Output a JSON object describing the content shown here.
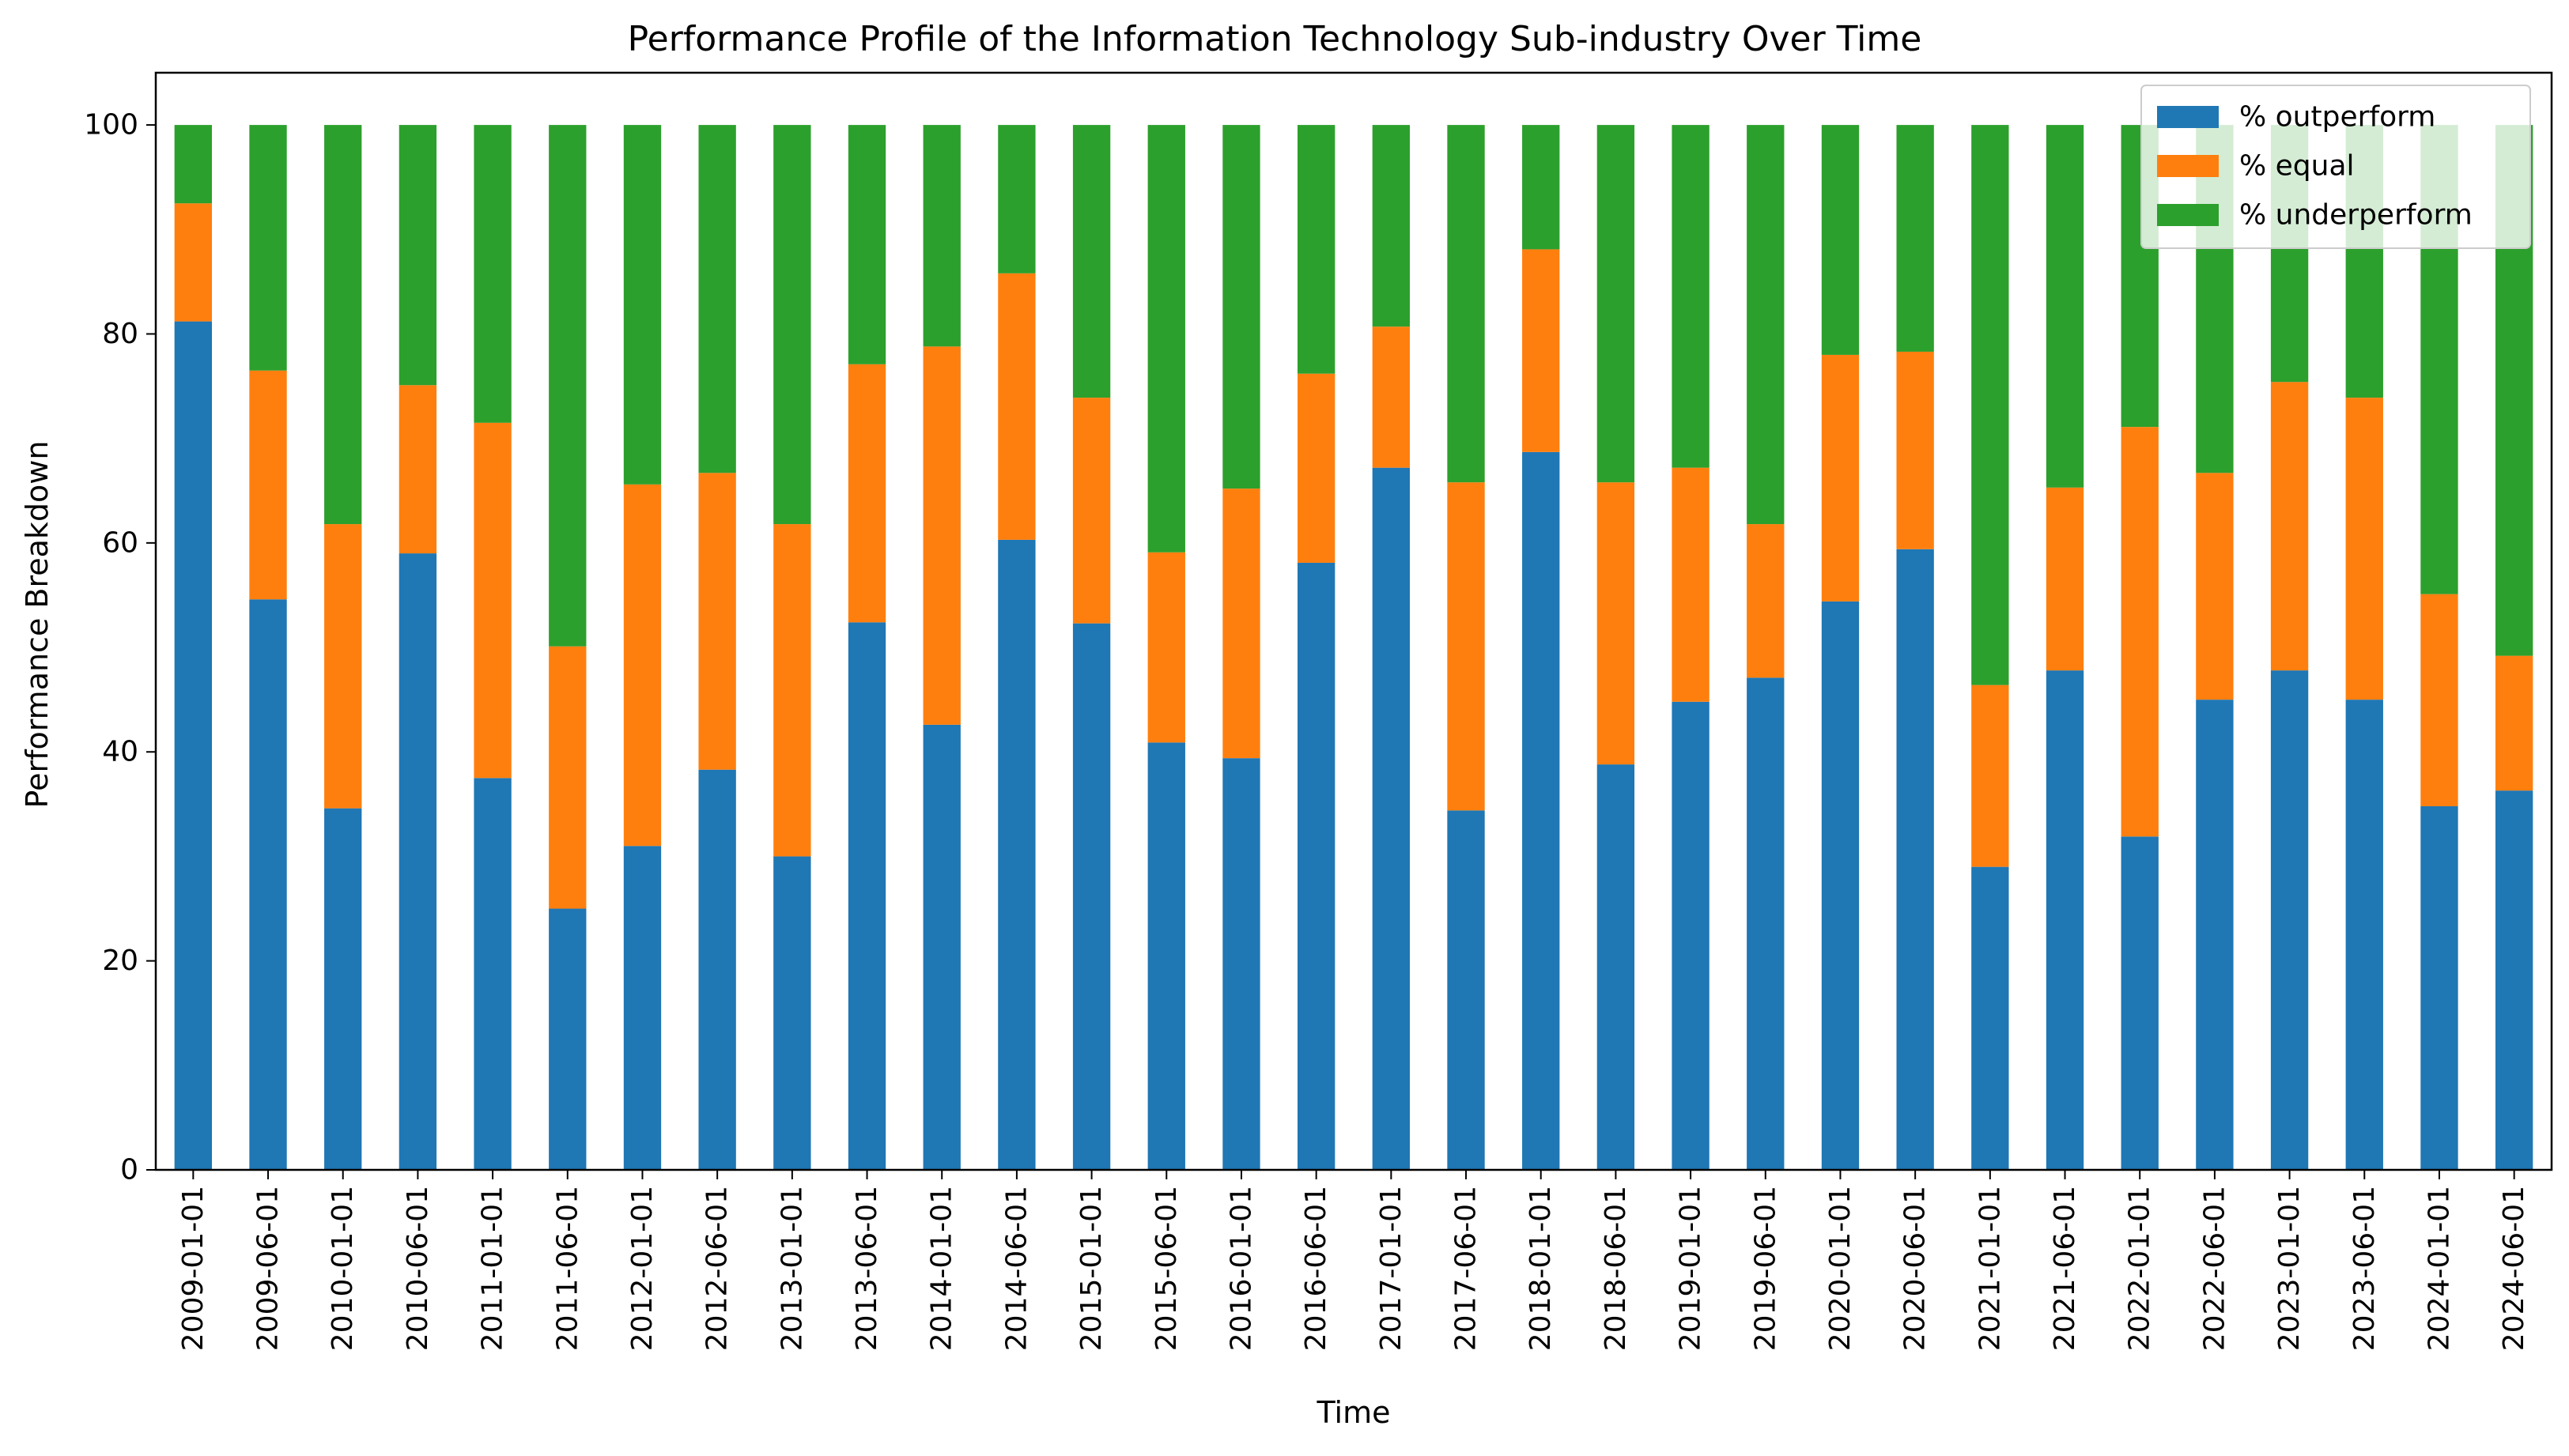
{
  "chart_data": {
    "type": "bar",
    "stacked": true,
    "title": "Performance Profile of the Information Technology Sub-industry Over Time",
    "xlabel": "Time",
    "ylabel": "Performance Breakdown",
    "ylim": [
      0,
      105
    ],
    "yticks": [
      0,
      20,
      40,
      60,
      80,
      100
    ],
    "grid": false,
    "legend_position": "top-right",
    "categories": [
      "2009-01-01",
      "2009-06-01",
      "2010-01-01",
      "2010-06-01",
      "2011-01-01",
      "2011-06-01",
      "2012-01-01",
      "2012-06-01",
      "2013-01-01",
      "2013-06-01",
      "2014-01-01",
      "2014-06-01",
      "2015-01-01",
      "2015-06-01",
      "2016-01-01",
      "2016-06-01",
      "2017-01-01",
      "2017-06-01",
      "2018-01-01",
      "2018-06-01",
      "2019-01-01",
      "2019-06-01",
      "2020-01-01",
      "2020-06-01",
      "2021-01-01",
      "2021-06-01",
      "2022-01-01",
      "2022-06-01",
      "2023-01-01",
      "2023-06-01",
      "2024-01-01",
      "2024-06-01"
    ],
    "series": [
      {
        "name": "% outperform",
        "color": "#1f77b4",
        "values": [
          81.2,
          54.6,
          34.6,
          59.0,
          37.5,
          25.0,
          31.0,
          38.3,
          30.0,
          52.4,
          42.6,
          60.3,
          52.3,
          40.9,
          39.4,
          58.1,
          67.2,
          34.4,
          68.7,
          38.8,
          44.8,
          47.1,
          54.4,
          59.4,
          29.0,
          47.8,
          31.9,
          45.0,
          47.8,
          45.0,
          34.8,
          36.3
        ]
      },
      {
        "name": "% equal",
        "color": "#ff7f0e",
        "values": [
          11.3,
          21.9,
          27.2,
          16.1,
          34.0,
          25.1,
          34.6,
          28.4,
          31.8,
          24.7,
          36.2,
          25.5,
          21.6,
          18.2,
          25.8,
          18.1,
          13.5,
          31.4,
          19.4,
          27.0,
          22.4,
          14.7,
          23.6,
          18.9,
          17.4,
          17.5,
          39.2,
          21.7,
          27.6,
          28.9,
          20.3,
          12.9
        ]
      },
      {
        "name": "% underperform",
        "color": "#2ca02c",
        "values": [
          7.5,
          23.5,
          38.2,
          24.9,
          28.5,
          49.9,
          34.4,
          33.3,
          38.2,
          22.9,
          21.2,
          14.2,
          26.1,
          40.9,
          34.8,
          23.8,
          19.3,
          34.2,
          11.9,
          34.2,
          32.8,
          38.2,
          22.0,
          21.7,
          53.6,
          34.7,
          28.9,
          33.3,
          24.6,
          26.1,
          44.9,
          50.8
        ]
      }
    ]
  }
}
